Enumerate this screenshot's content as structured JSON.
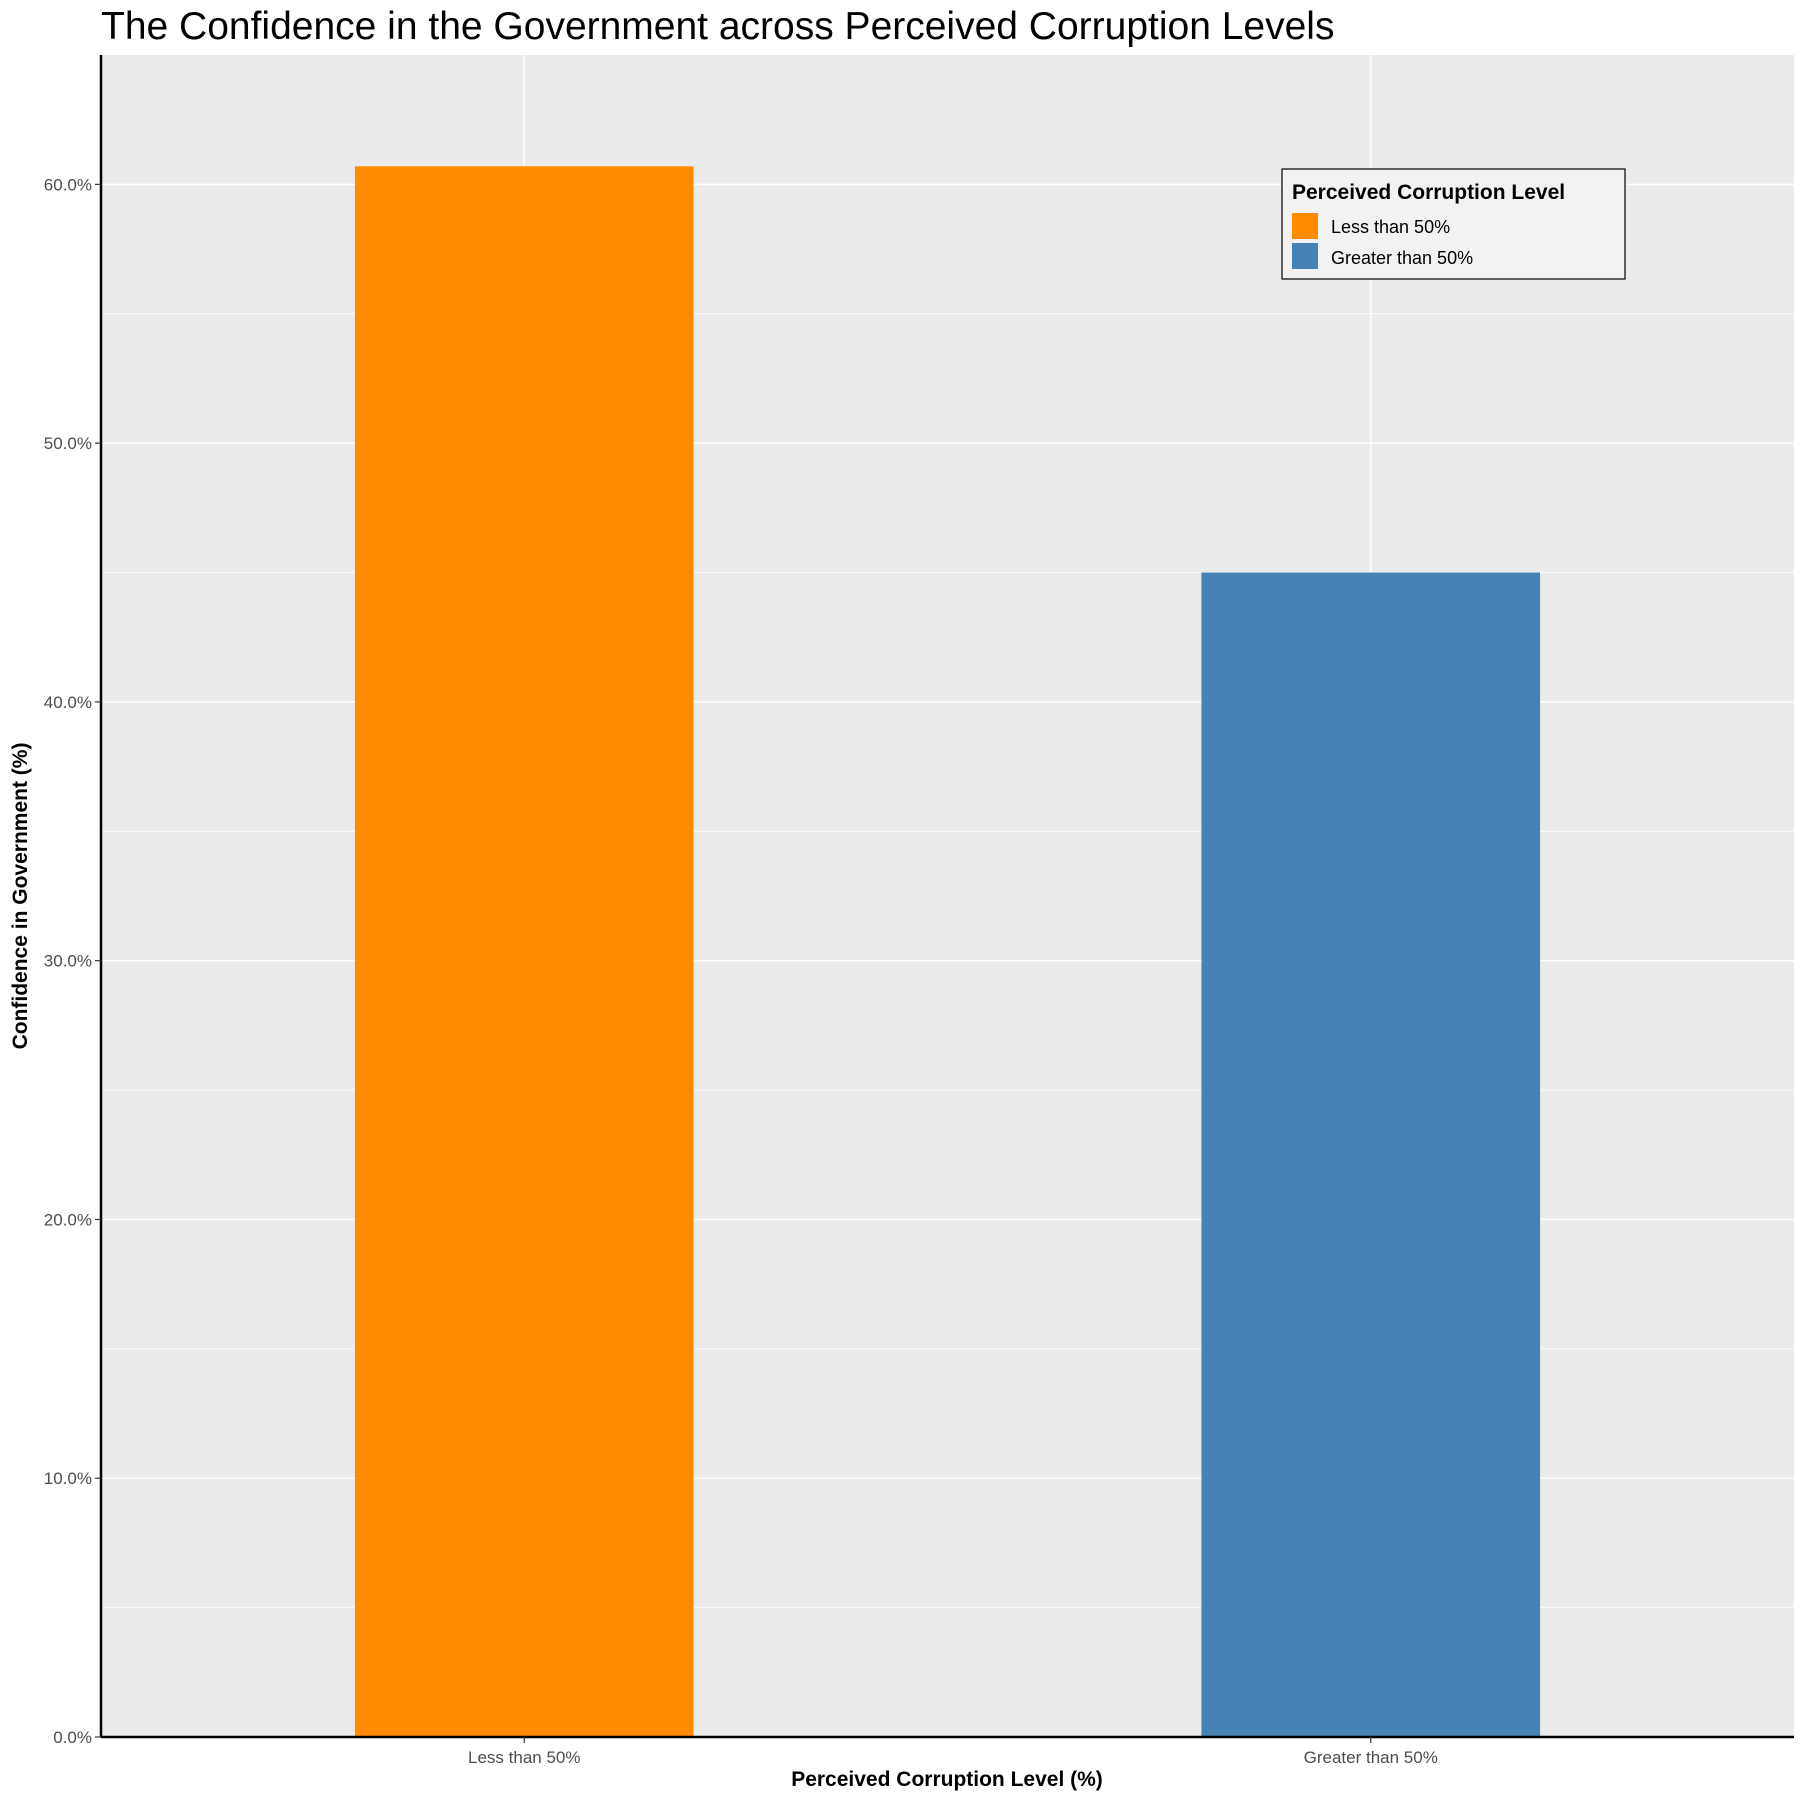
{
  "chart_data": {
    "type": "bar",
    "title": "The Confidence in the Government across Perceived Corruption Levels",
    "xlabel": "Perceived Corruption Level (%)",
    "ylabel": "Confidence in Government (%)",
    "categories": [
      "Less than 50%",
      "Greater than 50%"
    ],
    "values": [
      60.7,
      45.0
    ],
    "colors": [
      "#FF8C00",
      "#4682B4"
    ],
    "ylim": [
      0,
      65
    ],
    "yticks": [
      0,
      10,
      20,
      30,
      40,
      50,
      60
    ],
    "ytick_labels": [
      "0.0%",
      "10.0%",
      "20.0%",
      "30.0%",
      "40.0%",
      "50.0%",
      "60.0%"
    ],
    "grid": true,
    "legend": {
      "title": "Perceived Corruption Level",
      "position": "top-right",
      "items": [
        "Less than 50%",
        "Greater than 50%"
      ]
    }
  }
}
